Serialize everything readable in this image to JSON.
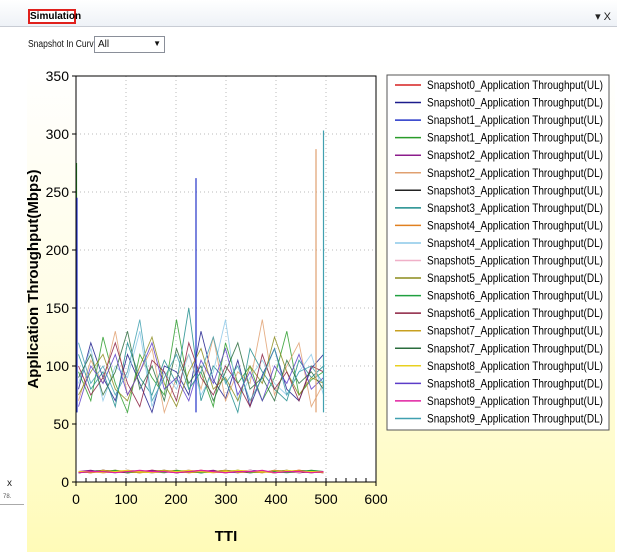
{
  "panel": {
    "tab_label": "Simulation",
    "tab_controls": "▾ X"
  },
  "toolbar": {
    "snapshot_label": "Snapshot In Curve",
    "snapshot_value": "All"
  },
  "left_stub": {
    "close": "x",
    "number": "78."
  },
  "chart_data": {
    "type": "line",
    "xlabel": "TTI",
    "ylabel": "Application Throughput(Mbps)",
    "xlim": [
      0,
      600
    ],
    "ylim": [
      0,
      350
    ],
    "xticks": [
      0,
      100,
      200,
      300,
      400,
      500,
      600
    ],
    "yticks": [
      0,
      50,
      100,
      150,
      200,
      250,
      300,
      350
    ],
    "grid": true,
    "legend_position": "top-right",
    "series": [
      {
        "name": "Snapshot0_Application Throughput(UL)",
        "color": "#d62020",
        "kind": "ul",
        "values": [
          9,
          8,
          10,
          9,
          8,
          9,
          10,
          9,
          8,
          9,
          10,
          9,
          8,
          9,
          10,
          9,
          8,
          9,
          10,
          9,
          9
        ]
      },
      {
        "name": "Snapshot0_Application Throughput(DL)",
        "color": "#1c1c8c",
        "kind": "dl",
        "values": [
          80,
          120,
          90,
          70,
          110,
          85,
          60,
          100,
          95,
          75,
          130,
          88,
          72,
          105,
          65,
          92,
          115,
          80,
          70,
          98,
          110
        ]
      },
      {
        "name": "Snapshot1_Application Throughput(UL)",
        "color": "#2434c8",
        "kind": "ul",
        "values": [
          8,
          9,
          9,
          8,
          10,
          9,
          8,
          9,
          9,
          10,
          8,
          9,
          9,
          8,
          10,
          9,
          8,
          9,
          9,
          8,
          9
        ]
      },
      {
        "name": "Snapshot1_Application Throughput(DL)",
        "color": "#2a9c2a",
        "kind": "dl",
        "values": [
          95,
          70,
          125,
          85,
          60,
          110,
          90,
          75,
          140,
          80,
          95,
          65,
          120,
          85,
          100,
          70,
          90,
          130,
          75,
          88,
          95
        ]
      },
      {
        "name": "Snapshot2_Application Throughput(UL)",
        "color": "#8c1c8c",
        "kind": "ul",
        "values": [
          9,
          10,
          8,
          9,
          9,
          8,
          10,
          9,
          8,
          9,
          9,
          10,
          8,
          9,
          9,
          8,
          10,
          9,
          8,
          9,
          9
        ]
      },
      {
        "name": "Snapshot2_Application Throughput(DL)",
        "color": "#e0a070",
        "kind": "dl",
        "values": [
          70,
          105,
          85,
          130,
          75,
          95,
          115,
          60,
          90,
          110,
          80,
          125,
          70,
          95,
          85,
          140,
          75,
          100,
          120,
          65,
          85
        ]
      },
      {
        "name": "Snapshot3_Application Throughput(UL)",
        "color": "#222222",
        "kind": "ul",
        "values": [
          8,
          9,
          10,
          9,
          8,
          9,
          9,
          10,
          8,
          9,
          8,
          9,
          10,
          9,
          8,
          9,
          9,
          10,
          8,
          9,
          8
        ]
      },
      {
        "name": "Snapshot3_Application Throughput(DL)",
        "color": "#1c8c8c",
        "kind": "dl",
        "values": [
          110,
          80,
          95,
          65,
          120,
          90,
          75,
          105,
          85,
          150,
          70,
          100,
          88,
          60,
          115,
          95,
          80,
          70,
          105,
          90,
          100
        ]
      },
      {
        "name": "Snapshot4_Application Throughput(UL)",
        "color": "#e08020",
        "kind": "ul",
        "values": [
          9,
          8,
          9,
          10,
          9,
          8,
          9,
          9,
          10,
          8,
          9,
          9,
          8,
          10,
          9,
          9,
          8,
          9,
          10,
          9,
          8
        ]
      },
      {
        "name": "Snapshot4_Application Throughput(DL)",
        "color": "#8cc8e8",
        "kind": "dl",
        "values": [
          85,
          115,
          70,
          100,
          90,
          130,
          65,
          95,
          80,
          110,
          75,
          95,
          140,
          70,
          90,
          105,
          85,
          75,
          95,
          110,
          75
        ]
      },
      {
        "name": "Snapshot5_Application Throughput(UL)",
        "color": "#f0b0c8",
        "kind": "ul",
        "values": [
          9,
          9,
          8,
          9,
          10,
          9,
          9,
          8,
          9,
          10,
          9,
          8,
          9,
          9,
          10,
          8,
          9,
          9,
          8,
          10,
          9
        ]
      },
      {
        "name": "Snapshot5_Application Throughput(DL)",
        "color": "#8c8c1c",
        "kind": "dl",
        "values": [
          75,
          95,
          110,
          80,
          70,
          100,
          125,
          85,
          65,
          95,
          115,
          80,
          90,
          70,
          100,
          85,
          125,
          95,
          75,
          90,
          85
        ]
      },
      {
        "name": "Snapshot6_Application Throughput(UL)",
        "color": "#20a040",
        "kind": "ul",
        "values": [
          8,
          9,
          9,
          10,
          8,
          9,
          9,
          8,
          10,
          9,
          8,
          9,
          9,
          10,
          8,
          9,
          9,
          8,
          9,
          10,
          9
        ]
      },
      {
        "name": "Snapshot6_Application Throughput(DL)",
        "color": "#8c2040",
        "kind": "dl",
        "values": [
          100,
          75,
          90,
          120,
          85,
          65,
          105,
          95,
          70,
          120,
          90,
          75,
          100,
          85,
          65,
          110,
          80,
          95,
          70,
          100,
          95
        ]
      },
      {
        "name": "Snapshot7_Application Throughput(UL)",
        "color": "#c8a020",
        "kind": "ul",
        "values": [
          9,
          8,
          10,
          9,
          9,
          8,
          9,
          10,
          9,
          8,
          9,
          9,
          10,
          8,
          9,
          8,
          10,
          9,
          9,
          8,
          9
        ]
      },
      {
        "name": "Snapshot7_Application Throughput(DL)",
        "color": "#2a6c3c",
        "kind": "dl",
        "values": [
          90,
          110,
          75,
          95,
          130,
          80,
          100,
          70,
          115,
          85,
          100,
          70,
          95,
          120,
          80,
          90,
          70,
          105,
          85,
          95,
          80
        ]
      },
      {
        "name": "Snapshot8_Application Throughput(UL)",
        "color": "#e8d020",
        "kind": "ul",
        "values": [
          9,
          9,
          8,
          9,
          10,
          9,
          8,
          9,
          9,
          10,
          9,
          8,
          9,
          10,
          9,
          9,
          8,
          10,
          9,
          9,
          9
        ]
      },
      {
        "name": "Snapshot8_Application Throughput(DL)",
        "color": "#5c3cc8",
        "kind": "dl",
        "values": [
          65,
          100,
          85,
          110,
          75,
          95,
          120,
          80,
          90,
          70,
          105,
          85,
          115,
          75,
          95,
          70,
          100,
          85,
          110,
          80,
          90
        ]
      },
      {
        "name": "Snapshot9_Application Throughput(UL)",
        "color": "#e020a0",
        "kind": "ul",
        "values": [
          8,
          9,
          9,
          8,
          9,
          10,
          9,
          9,
          8,
          9,
          10,
          9,
          8,
          9,
          9,
          10,
          8,
          9,
          9,
          8,
          9
        ]
      },
      {
        "name": "Snapshot9_Application Throughput(DL)",
        "color": "#40a0b0",
        "kind": "dl",
        "values": [
          120,
          85,
          100,
          75,
          95,
          140,
          70,
          90,
          110,
          80,
          95,
          125,
          85,
          100,
          70,
          90,
          115,
          75,
          95,
          100,
          85
        ]
      }
    ],
    "spikes": [
      {
        "x": 1,
        "y": 275,
        "color": "#2a9c2a"
      },
      {
        "x": 2,
        "y": 245,
        "color": "#2434c8"
      },
      {
        "x": 240,
        "y": 262,
        "color": "#2434c8"
      },
      {
        "x": 480,
        "y": 287,
        "color": "#e0a070"
      },
      {
        "x": 495,
        "y": 303,
        "color": "#40a0b0"
      }
    ]
  }
}
